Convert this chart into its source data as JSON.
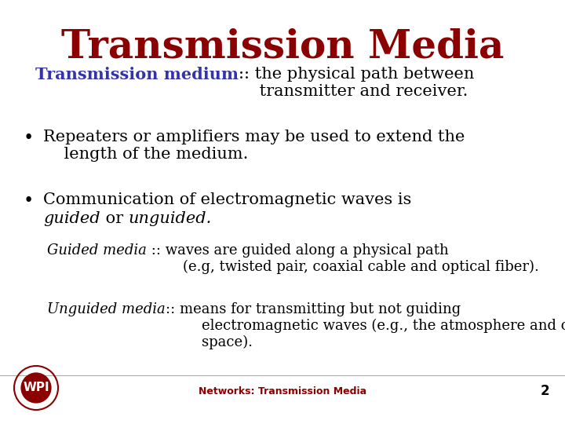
{
  "title": "Transmission Media",
  "title_color": "#8B0000",
  "title_fontsize": 36,
  "bg_color": "#FFFFFF",
  "slide_number": "2",
  "footer_text": "Networks: Transmission Media",
  "footer_color": "#8B0000",
  "heading_bold": "Transmission medium",
  "heading_bold_color": "#3333AA",
  "heading_rest": ":: the physical path between\n    transmitter and receiver.",
  "heading_color": "#000000",
  "heading_fontsize": 15,
  "bullet1": "Repeaters or amplifiers may be used to extend the\n    length of the medium.",
  "bullet1_fontsize": 15,
  "bullet2_line1": "Communication of electromagnetic waves is",
  "bullet2_line2_i1": "guided",
  "bullet2_line2_m": " or ",
  "bullet2_line2_i2": "unguided.",
  "bullet2_fontsize": 15,
  "sub1_italic": "Guided media",
  "sub1_rest": " :: waves are guided along a physical path\n        (e.g, twisted pair, coaxial cable and optical fiber).",
  "sub1_fontsize": 13,
  "sub2_italic": "Unguided media",
  "sub2_rest": ":: means for transmitting but not guiding\n        electromagnetic waves (e.g., the atmosphere and outer\n        space).",
  "sub2_fontsize": 13,
  "bullet_color": "#000000",
  "text_color": "#000000"
}
